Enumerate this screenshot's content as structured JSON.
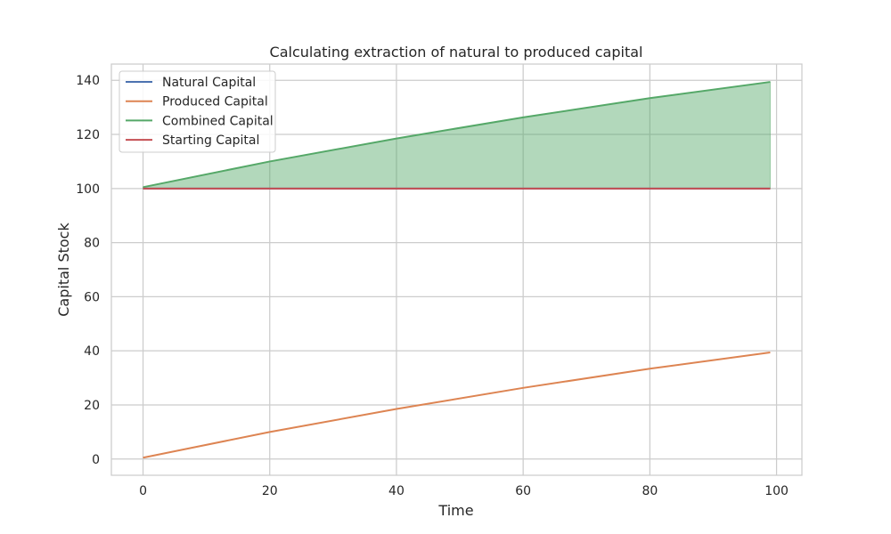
{
  "chart_data": {
    "type": "line",
    "title": "Calculating extraction of natural to produced capital",
    "xlabel": "Time",
    "ylabel": "Capital Stock",
    "xlim": [
      -5,
      104
    ],
    "ylim": [
      -6,
      146
    ],
    "xticks": [
      0,
      20,
      40,
      60,
      80,
      100
    ],
    "yticks": [
      0,
      20,
      40,
      60,
      80,
      100,
      120,
      140
    ],
    "grid": true,
    "legend_position": "top-left",
    "x": [
      0,
      20,
      40,
      60,
      80,
      99
    ],
    "series": [
      {
        "name": "Natural Capital",
        "color": "#4c72b0",
        "values": [
          100,
          100,
          100,
          100,
          100,
          100
        ]
      },
      {
        "name": "Produced Capital",
        "color": "#dd8452",
        "values": [
          0.5,
          10,
          18.5,
          26.3,
          33.4,
          39.4
        ]
      },
      {
        "name": "Combined Capital",
        "color": "#55a868",
        "values": [
          100.5,
          110,
          118.5,
          126.3,
          133.4,
          139.4
        ]
      },
      {
        "name": "Starting Capital",
        "color": "#c44e52",
        "values": [
          100,
          100,
          100,
          100,
          100,
          100
        ]
      }
    ],
    "fill_between": {
      "lower": 100,
      "upper_series": "Combined Capital",
      "color": "#55a868",
      "opacity": 0.45
    }
  }
}
